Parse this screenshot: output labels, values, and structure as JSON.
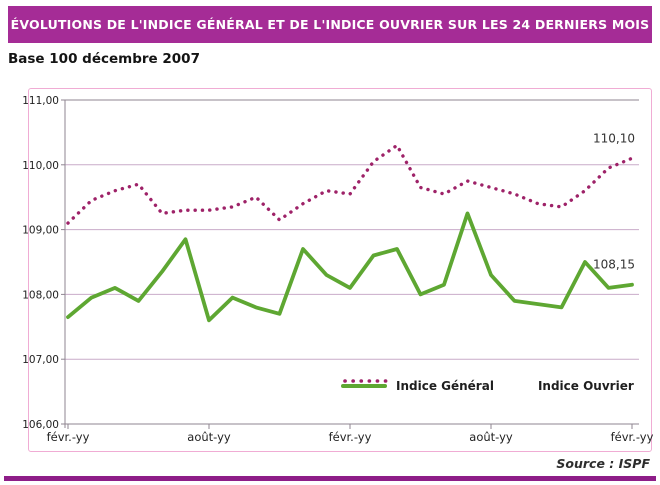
{
  "header": {
    "title": "ÉVOLUTIONS DE L'INDICE GÉNÉRAL ET DE L'INDICE OUVRIER SUR LES 24 DERNIERS MOIS",
    "subtitle": "Base 100 décembre 2007"
  },
  "footer": {
    "source": "Source : ISPF"
  },
  "legend": {
    "general": "Indice Général",
    "ouvrier": "Indice Ouvrier"
  },
  "colors": {
    "banner": "#A52C96",
    "bottomBar": "#8E1D88",
    "chartBorder": "#F0ACD4",
    "grid": "#C9ABC9",
    "axis": "#8F8691",
    "green": "#5EA732",
    "magenta": "#9E2268",
    "tickText": "#222222",
    "annotationText": "#333333"
  },
  "chart_data": {
    "type": "line",
    "title": "ÉVOLUTIONS DE L'INDICE GÉNÉRAL ET DE L'INDICE OUVRIER SUR LES 24 DERNIERS MOIS",
    "subtitle": "Base 100 décembre 2007",
    "ylim": [
      106,
      111
    ],
    "grid": true,
    "legend_position": "bottom-inside",
    "y_ticks": [
      "111,00",
      "110,00",
      "109,00",
      "108,00",
      "107,00",
      "106,00"
    ],
    "x_tick_labels": [
      "févr.-yy",
      "août-yy",
      "févr.-yy",
      "août-yy",
      "févr.-yy"
    ],
    "x_tick_positions": [
      0,
      6,
      12,
      18,
      24
    ],
    "n_points": 25,
    "series": [
      {
        "key": "general",
        "name": "Indice Général",
        "style": "solid",
        "color": "#5EA732",
        "values": [
          107.65,
          107.95,
          108.1,
          107.9,
          108.35,
          108.85,
          107.6,
          107.95,
          107.8,
          107.7,
          108.7,
          108.3,
          108.1,
          108.6,
          108.7,
          108.0,
          108.15,
          109.25,
          108.3,
          107.9,
          107.85,
          107.8,
          108.5,
          108.1,
          108.15
        ]
      },
      {
        "key": "ouvrier",
        "name": "Indice Ouvrier",
        "style": "dotted",
        "color": "#9E2268",
        "values": [
          109.1,
          109.45,
          109.6,
          109.7,
          109.25,
          109.3,
          109.3,
          109.35,
          109.5,
          109.15,
          109.4,
          109.6,
          109.55,
          110.05,
          110.3,
          109.65,
          109.55,
          109.75,
          109.65,
          109.55,
          109.4,
          109.35,
          109.6,
          109.95,
          110.1
        ]
      }
    ],
    "annotations": [
      {
        "text": "110,10",
        "series": "ouvrier"
      },
      {
        "text": "108,15",
        "series": "general"
      }
    ]
  }
}
